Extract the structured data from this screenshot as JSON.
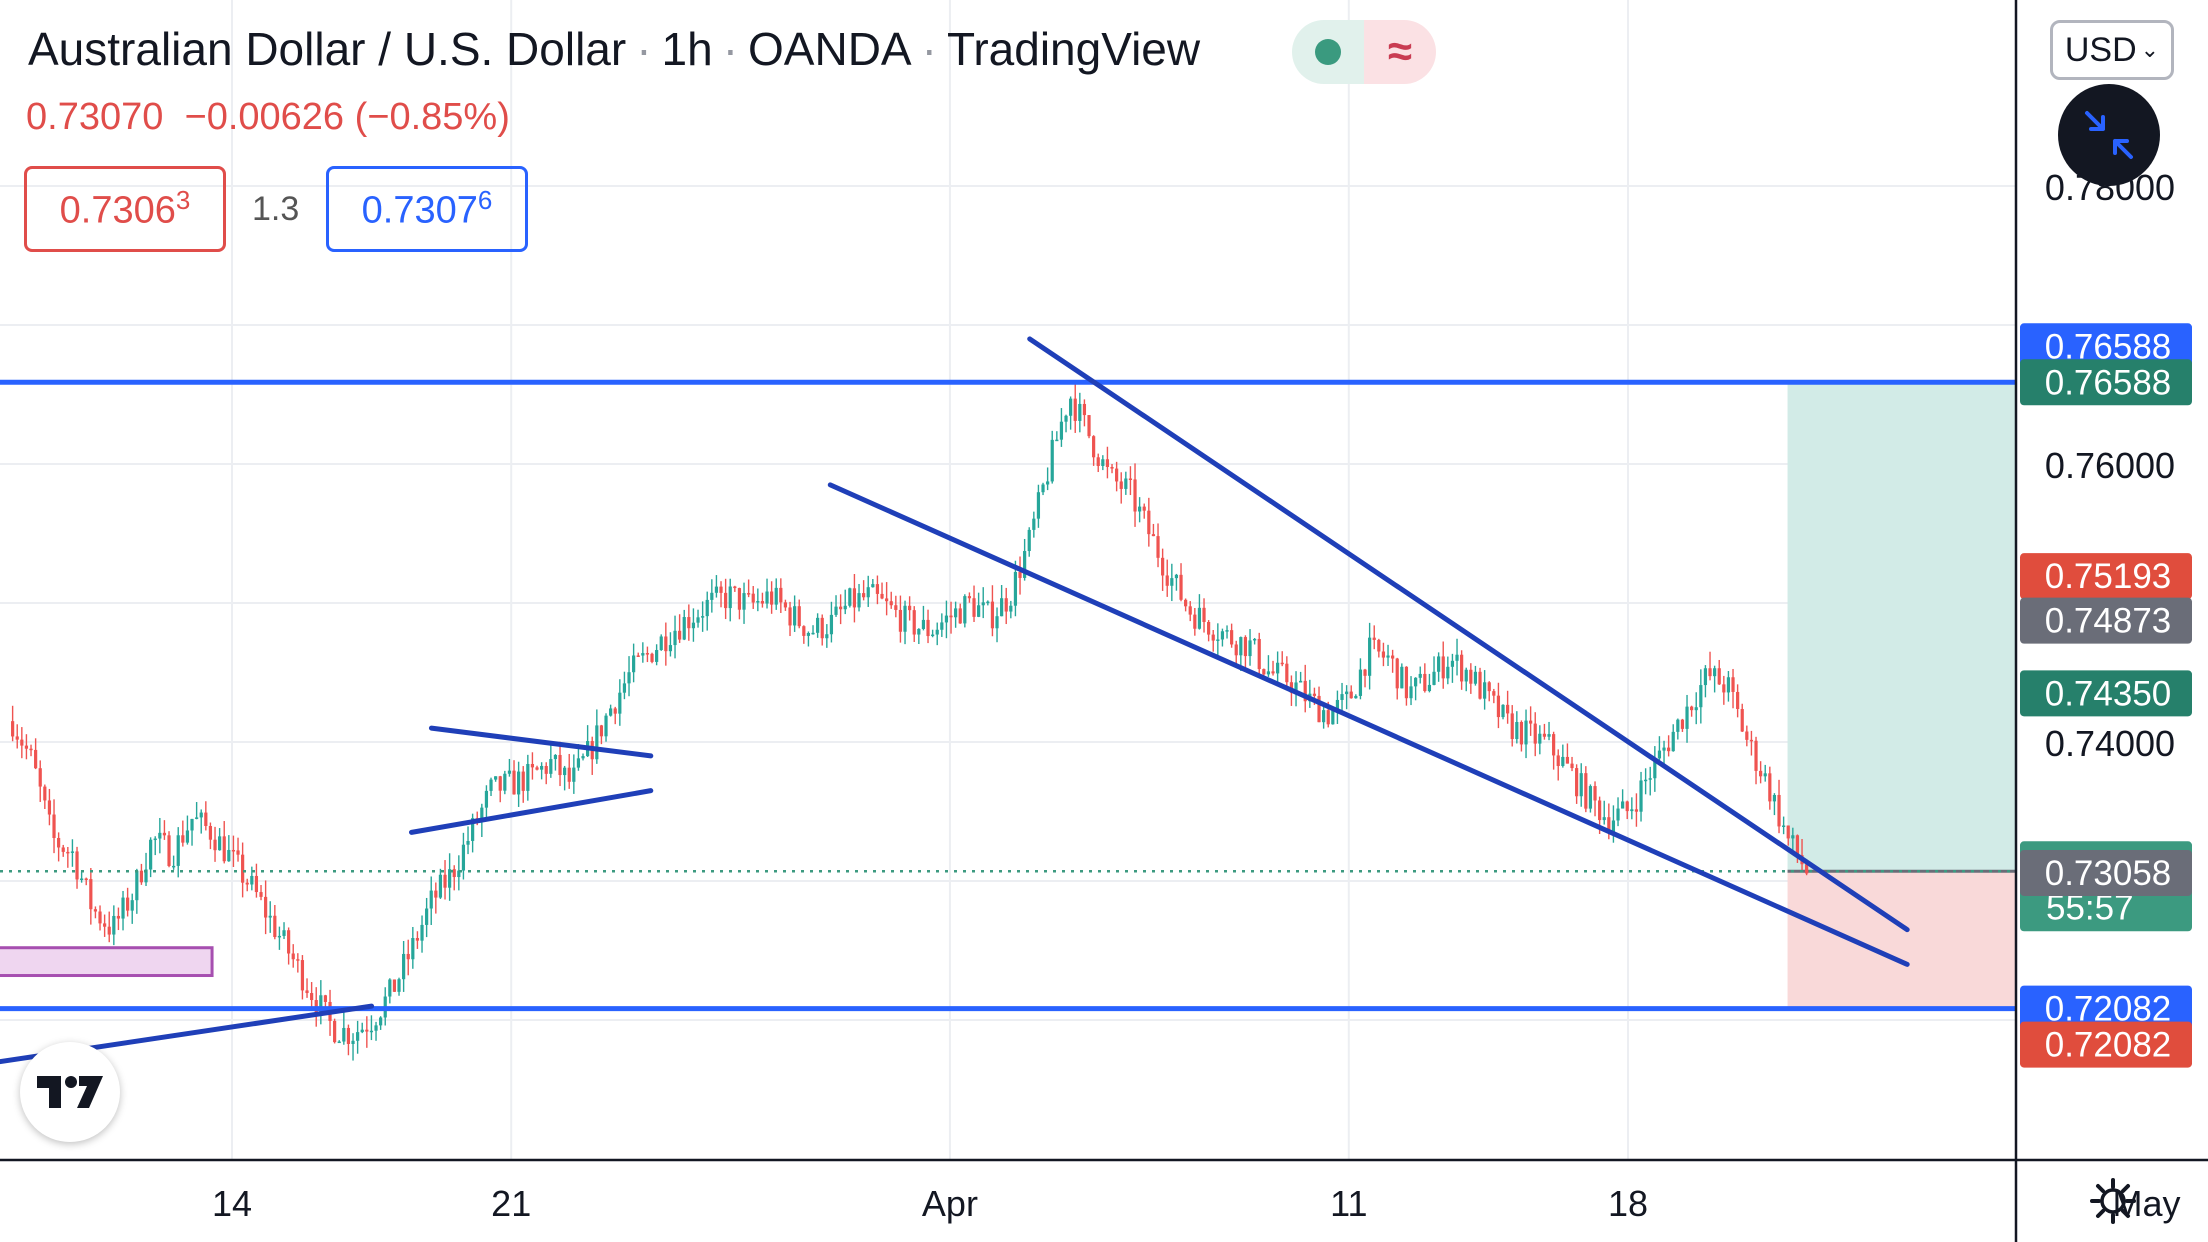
{
  "header": {
    "symbol": "Australian Dollar / U.S. Dollar",
    "interval": "1h",
    "broker": "OANDA",
    "platform": "TradingView",
    "last": "0.73070",
    "change": "−0.00626",
    "change_pct": "(−0.85%)",
    "sep": "·"
  },
  "trade": {
    "sell": "0.73063",
    "buy": "0.73076",
    "spread": "1.3"
  },
  "currency": "USD",
  "colors": {
    "up": "#26a69a",
    "down": "#ef5350",
    "line": "#2962ff",
    "trend": "#1f3fb8",
    "profit": "#d2ebe7",
    "loss": "#f9d9d9"
  },
  "icons": {
    "collapse": "collapse-arrows-icon",
    "logo": "tradingview-logo-icon",
    "settings": "gear-icon",
    "dropdown": "chevron-down-icon"
  },
  "chart_data": {
    "type": "candlestick",
    "symbol": "AUDUSD",
    "ylim": [
      0.714,
      0.787
    ],
    "x_labels": [
      {
        "label": "14",
        "date": "2021-03-14"
      },
      {
        "label": "21",
        "date": "2021-03-21"
      },
      {
        "label": "Apr",
        "date": "2021-04-01"
      },
      {
        "label": "11",
        "date": "2021-04-11"
      },
      {
        "label": "18",
        "date": "2021-04-18"
      },
      {
        "label": "May",
        "date": "2021-05-01"
      }
    ],
    "y_ticks": [
      "0.78000",
      "0.76000",
      "0.74000"
    ],
    "path": [
      [
        "2021-03-08 12:00",
        0.7415
      ],
      [
        "2021-03-09 00:00",
        0.7385
      ],
      [
        "2021-03-09 12:00",
        0.733
      ],
      [
        "2021-03-10 00:00",
        0.732
      ],
      [
        "2021-03-10 12:00",
        0.728
      ],
      [
        "2021-03-11 00:00",
        0.7265
      ],
      [
        "2021-03-11 12:00",
        0.729
      ],
      [
        "2021-03-12 00:00",
        0.733
      ],
      [
        "2021-03-12 12:00",
        0.732
      ],
      [
        "2021-03-13 00:00",
        0.7345
      ],
      [
        "2021-03-13 12:00",
        0.7335
      ],
      [
        "2021-03-14 00:00",
        0.7315
      ],
      [
        "2021-03-14 12:00",
        0.7295
      ],
      [
        "2021-03-15 00:00",
        0.727
      ],
      [
        "2021-03-15 12:00",
        0.7245
      ],
      [
        "2021-03-16 00:00",
        0.722
      ],
      [
        "2021-03-16 12:00",
        0.7195
      ],
      [
        "2021-03-17 00:00",
        0.719
      ],
      [
        "2021-03-17 12:00",
        0.72
      ],
      [
        "2021-03-18 00:00",
        0.722
      ],
      [
        "2021-03-18 12:00",
        0.725
      ],
      [
        "2021-03-19 00:00",
        0.7285
      ],
      [
        "2021-03-19 12:00",
        0.7305
      ],
      [
        "2021-03-20 00:00",
        0.7335
      ],
      [
        "2021-03-20 12:00",
        0.7365
      ],
      [
        "2021-03-21 00:00",
        0.737
      ],
      [
        "2021-03-21 12:00",
        0.7375
      ],
      [
        "2021-03-22 00:00",
        0.7385
      ],
      [
        "2021-03-22 12:00",
        0.737
      ],
      [
        "2021-03-23 00:00",
        0.7395
      ],
      [
        "2021-03-23 12:00",
        0.7425
      ],
      [
        "2021-03-24 00:00",
        0.745
      ],
      [
        "2021-03-24 12:00",
        0.7465
      ],
      [
        "2021-03-25 00:00",
        0.748
      ],
      [
        "2021-03-25 12:00",
        0.749
      ],
      [
        "2021-03-26 00:00",
        0.75
      ],
      [
        "2021-03-26 12:00",
        0.7505
      ],
      [
        "2021-03-27 00:00",
        0.7498
      ],
      [
        "2021-03-27 12:00",
        0.7505
      ],
      [
        "2021-03-28 00:00",
        0.7492
      ],
      [
        "2021-03-28 12:00",
        0.748
      ],
      [
        "2021-03-29 00:00",
        0.7485
      ],
      [
        "2021-03-29 12:00",
        0.75
      ],
      [
        "2021-03-30 00:00",
        0.7505
      ],
      [
        "2021-03-30 12:00",
        0.7495
      ],
      [
        "2021-03-31 00:00",
        0.7485
      ],
      [
        "2021-03-31 12:00",
        0.748
      ],
      [
        "2021-04-01 00:00",
        0.749
      ],
      [
        "2021-04-01 12:00",
        0.75
      ],
      [
        "2021-04-02 00:00",
        0.749
      ],
      [
        "2021-04-02 12:00",
        0.7505
      ],
      [
        "2021-04-03 00:00",
        0.7545
      ],
      [
        "2021-04-03 12:00",
        0.76
      ],
      [
        "2021-04-04 00:00",
        0.765
      ],
      [
        "2021-04-04 12:00",
        0.762
      ],
      [
        "2021-04-05 00:00",
        0.759
      ],
      [
        "2021-04-05 12:00",
        0.758
      ],
      [
        "2021-04-06 00:00",
        0.755
      ],
      [
        "2021-04-06 12:00",
        0.752
      ],
      [
        "2021-04-07 00:00",
        0.7495
      ],
      [
        "2021-04-07 12:00",
        0.7485
      ],
      [
        "2021-04-08 00:00",
        0.7475
      ],
      [
        "2021-04-08 12:00",
        0.747
      ],
      [
        "2021-04-09 00:00",
        0.745
      ],
      [
        "2021-04-09 12:00",
        0.7445
      ],
      [
        "2021-04-10 00:00",
        0.743
      ],
      [
        "2021-04-10 12:00",
        0.742
      ],
      [
        "2021-04-11 00:00",
        0.743
      ],
      [
        "2021-04-11 12:00",
        0.7465
      ],
      [
        "2021-04-12 00:00",
        0.746
      ],
      [
        "2021-04-12 12:00",
        0.7435
      ],
      [
        "2021-04-13 00:00",
        0.7445
      ],
      [
        "2021-04-13 12:00",
        0.746
      ],
      [
        "2021-04-14 00:00",
        0.745
      ],
      [
        "2021-04-14 12:00",
        0.743
      ],
      [
        "2021-04-15 00:00",
        0.7412
      ],
      [
        "2021-04-15 12:00",
        0.7405
      ],
      [
        "2021-04-16 00:00",
        0.7398
      ],
      [
        "2021-04-16 12:00",
        0.738
      ],
      [
        "2021-04-17 00:00",
        0.736
      ],
      [
        "2021-04-17 12:00",
        0.7345
      ],
      [
        "2021-04-18 00:00",
        0.735
      ],
      [
        "2021-04-18 12:00",
        0.7375
      ],
      [
        "2021-04-19 00:00",
        0.74
      ],
      [
        "2021-04-19 12:00",
        0.7425
      ],
      [
        "2021-04-20 00:00",
        0.7448
      ],
      [
        "2021-04-20 12:00",
        0.744
      ],
      [
        "2021-04-21 00:00",
        0.74
      ],
      [
        "2021-04-21 12:00",
        0.737
      ],
      [
        "2021-04-22 00:00",
        0.733
      ],
      [
        "2021-04-22 12:00",
        0.7307
      ]
    ],
    "horizontal_lines": [
      {
        "price": 0.76588,
        "label": "0.76588"
      },
      {
        "price": 0.72082,
        "label": "0.72082"
      }
    ],
    "price_labels": [
      {
        "price": 0.76588,
        "text": "0.76588",
        "color": "#2962ff",
        "y_offset": -36
      },
      {
        "price": 0.76588,
        "text": "0.76588",
        "color": "#26806b",
        "y_offset": 0
      },
      {
        "price": 0.75193,
        "text": "0.75193",
        "color": "#e04d3d",
        "y_offset": 0
      },
      {
        "price": 0.74873,
        "text": "0.74873",
        "color": "#6a6d78",
        "y_offset": 0
      },
      {
        "price": 0.7435,
        "text": "0.74350",
        "color": "#26806b",
        "y_offset": 0
      },
      {
        "price": 0.7307,
        "text": "0.73070",
        "countdown": "55:57",
        "color": "#3c9a80",
        "y_offset": 15
      },
      {
        "price": 0.73058,
        "text": "0.73058",
        "color": "#6a6d78",
        "y_offset": 0
      },
      {
        "price": 0.72082,
        "text": "0.72082",
        "color": "#2962ff",
        "y_offset": 0
      },
      {
        "price": 0.72082,
        "text": "0.72082",
        "color": "#e04d3d",
        "y_offset": 36
      }
    ],
    "position": {
      "type": "long",
      "entry": 0.7307,
      "target": 0.76588,
      "stop": 0.72082,
      "start": "2021-04-22 00:00",
      "end": "2021-04-29 00:00"
    },
    "trendlines": [
      {
        "from": [
          "2021-04-03 00:00",
          0.769
        ],
        "to": [
          "2021-04-25 00:00",
          0.7265
        ]
      },
      {
        "from": [
          "2021-03-29 00:00",
          0.7585
        ],
        "to": [
          "2021-04-25 00:00",
          0.724
        ]
      },
      {
        "from": [
          "2021-03-19 00:00",
          0.741
        ],
        "to": [
          "2021-03-24 12:00",
          0.739
        ]
      },
      {
        "from": [
          "2021-03-18 12:00",
          0.7335
        ],
        "to": [
          "2021-03-24 12:00",
          0.7365
        ]
      },
      {
        "from": [
          "2021-03-07 00:00",
          0.7165
        ],
        "to": [
          "2021-03-17 12:00",
          0.721
        ]
      }
    ],
    "zone": {
      "from": "2021-03-07 00:00",
      "to": "2021-03-13 12:00",
      "top": 0.7252,
      "bottom": 0.7232
    }
  }
}
